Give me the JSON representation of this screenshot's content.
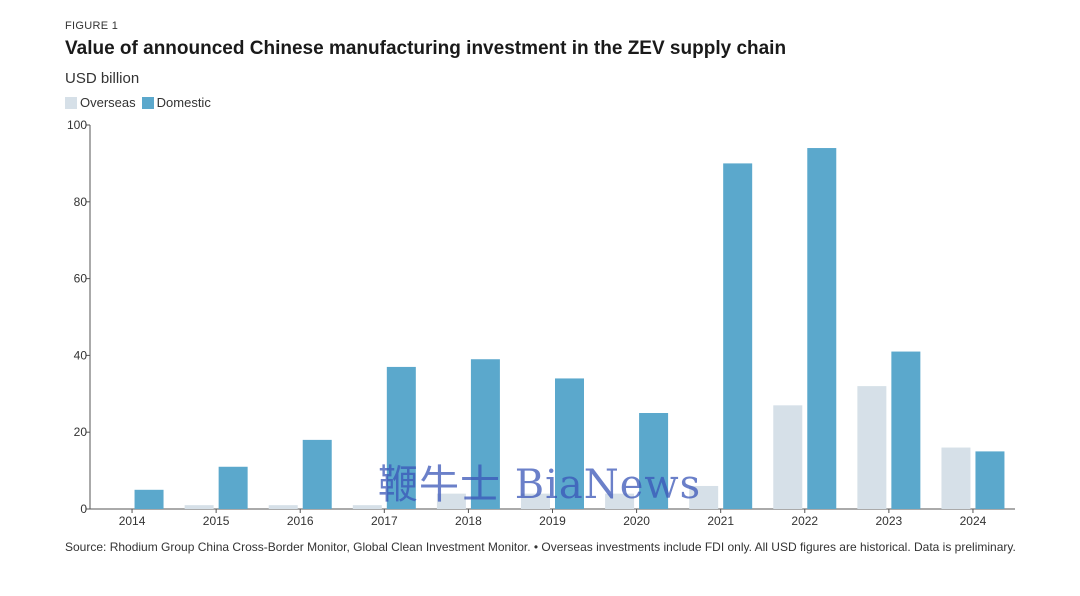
{
  "figure_label": "FIGURE 1",
  "watermark": "鞭牛士 BiaNews",
  "source_note": "Source: Rhodium Group China Cross-Border Monitor, Global Clean Investment Monitor. • Overseas investments include FDI only. All USD figures are historical. Data is preliminary.",
  "colors": {
    "overseas": "#d6e0e8",
    "domestic": "#5ba8cc",
    "axis": "#555555",
    "grid": "#cccccc"
  },
  "chart_data": {
    "type": "bar",
    "title": "Value of announced Chinese manufacturing investment in the ZEV supply chain",
    "ylabel": "USD billion",
    "xlabel": "",
    "categories": [
      "2014",
      "2015",
      "2016",
      "2017",
      "2018",
      "2019",
      "2020",
      "2021",
      "2022",
      "2023",
      "2024"
    ],
    "series": [
      {
        "name": "Overseas",
        "values": [
          0,
          1,
          1,
          1,
          4,
          4,
          4,
          6,
          27,
          32,
          16
        ]
      },
      {
        "name": "Domestic",
        "values": [
          5,
          11,
          18,
          37,
          39,
          34,
          25,
          90,
          94,
          41,
          15
        ]
      }
    ],
    "ylim": [
      0,
      100
    ],
    "yticks": [
      0,
      20,
      40,
      60,
      80,
      100
    ],
    "legend": "top-left",
    "grid": false
  }
}
